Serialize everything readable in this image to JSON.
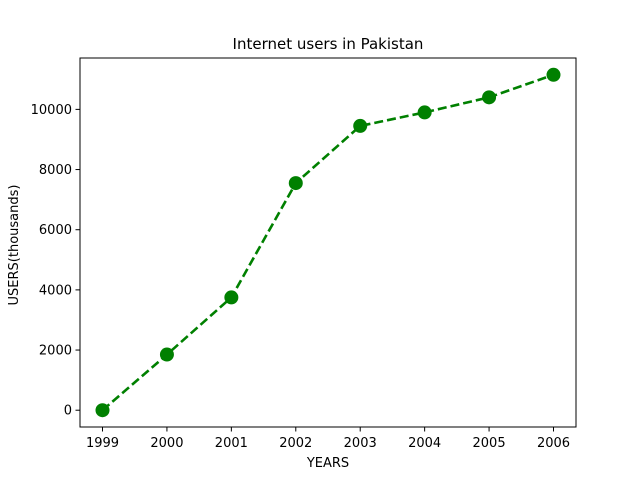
{
  "chart_data": {
    "type": "line",
    "title": "Internet users in Pakistan",
    "xlabel": "YEARS",
    "ylabel": "USERS(thousands)",
    "x": [
      "1999",
      "2000",
      "2001",
      "2002",
      "2003",
      "2004",
      "2005",
      "2006"
    ],
    "series": [
      {
        "values": [
          0,
          1850,
          3750,
          7550,
          9450,
          9900,
          10400,
          11150
        ],
        "color": "#008000",
        "line_style": "dashed",
        "marker": "circle"
      }
    ],
    "xticks": [
      "1999",
      "2000",
      "2001",
      "2002",
      "2003",
      "2004",
      "2005",
      "2006"
    ],
    "yticks": [
      0,
      2000,
      4000,
      6000,
      8000,
      10000
    ],
    "ylim": [
      -558,
      11708
    ],
    "grid": false,
    "legend": "none"
  }
}
